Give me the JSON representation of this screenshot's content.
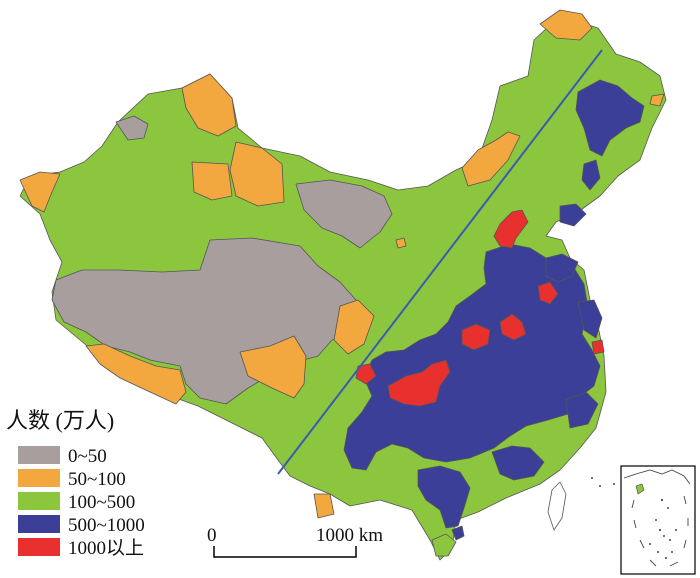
{
  "legend": {
    "title": "人数 (万人)",
    "items": [
      {
        "label": "0~50",
        "color": "#a89e9e"
      },
      {
        "label": "50~100",
        "color": "#f2a83f"
      },
      {
        "label": "100~500",
        "color": "#8cc63f"
      },
      {
        "label": "500~1000",
        "color": "#3b3f97"
      },
      {
        "label": "1000以上",
        "color": "#e8302f"
      }
    ]
  },
  "scale_bar": {
    "start": "0",
    "end": "1000 km"
  },
  "colors": {
    "boundary": "#555555",
    "divide_line": "#3a5bb0",
    "inset_border": "#000000"
  }
}
